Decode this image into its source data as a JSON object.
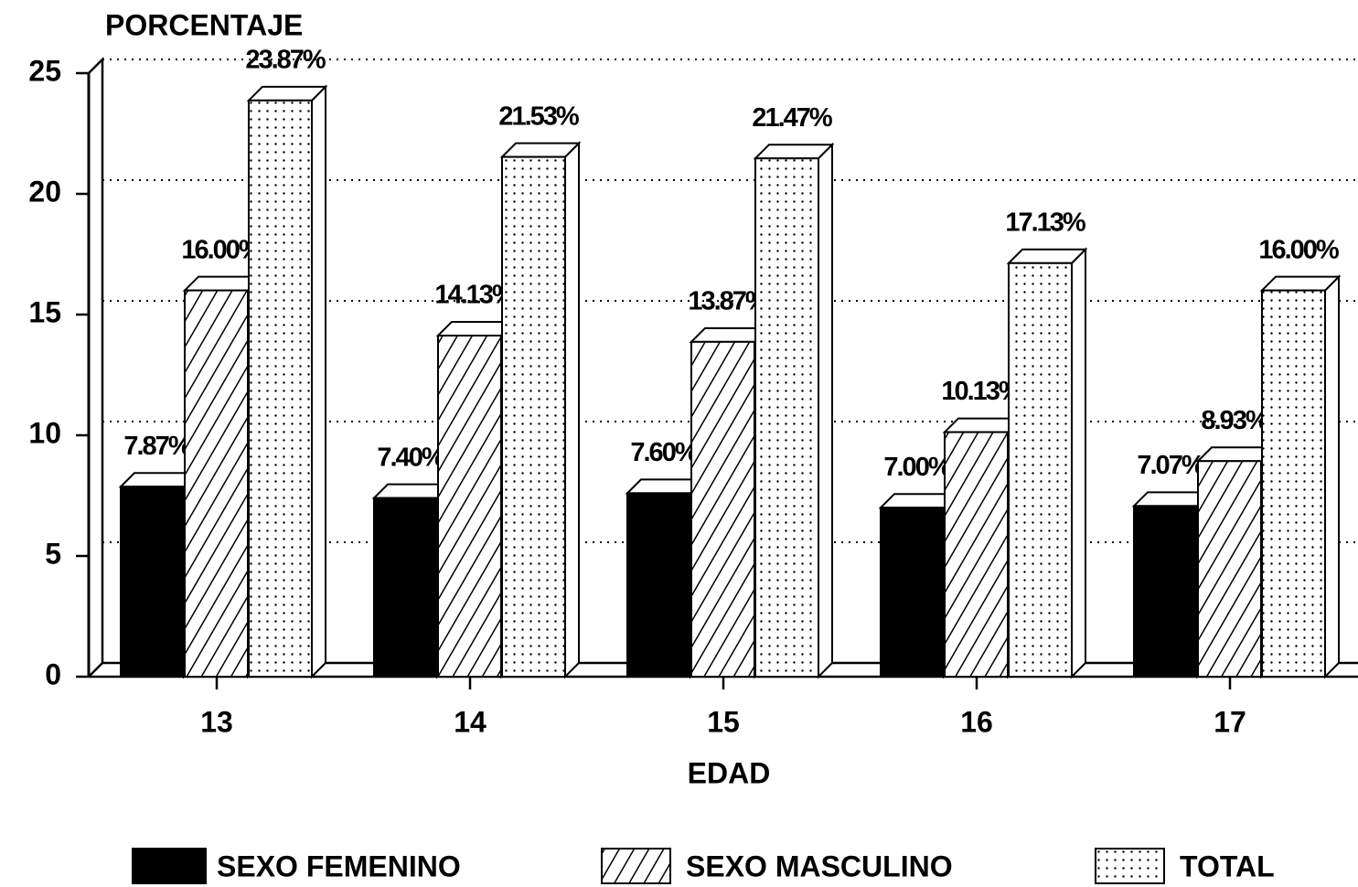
{
  "chart_data": {
    "type": "bar3d",
    "y_label": "PORCENTAJE",
    "x_label": "EDAD",
    "categories": [
      "13",
      "14",
      "15",
      "16",
      "17"
    ],
    "series": [
      {
        "name": "SEXO FEMENINO",
        "color": "#000000",
        "pattern": "solid",
        "values": [
          7.87,
          7.4,
          7.6,
          7.0,
          7.07
        ],
        "value_labels": [
          "7.87%",
          "7.40%",
          "7.60%",
          "7.00%",
          "7.07%"
        ]
      },
      {
        "name": "SEXO MASCULINO",
        "color": "#000000",
        "pattern": "hatch",
        "values": [
          16.0,
          14.13,
          13.87,
          10.13,
          8.93
        ],
        "value_labels": [
          "16.00%",
          "14.13%",
          "13.87%",
          "10.13%",
          "8.93%"
        ]
      },
      {
        "name": "TOTAL",
        "color": "#000000",
        "pattern": "dots",
        "values": [
          23.87,
          21.53,
          21.47,
          17.13,
          16.0
        ],
        "value_labels": [
          "23.87%",
          "21.53%",
          "21.47%",
          "17.13%",
          "16.00%"
        ]
      }
    ],
    "ylim": [
      0,
      25
    ],
    "yticks": [
      0,
      5,
      10,
      15,
      20,
      25
    ],
    "grid": true
  }
}
